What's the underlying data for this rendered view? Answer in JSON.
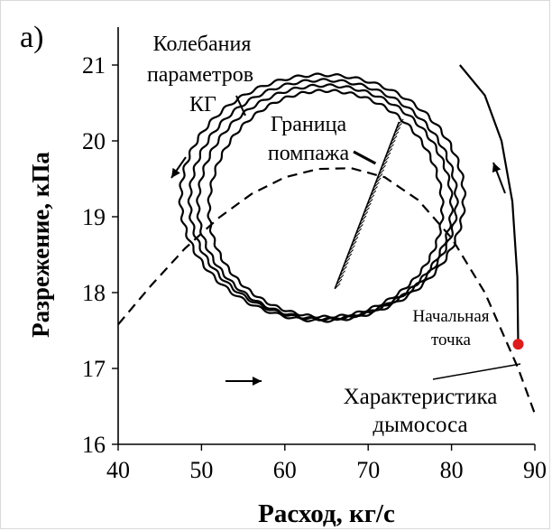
{
  "chart_data": {
    "type": "line",
    "panel_label": "а)",
    "xlabel": "Расход, кг/с",
    "ylabel": "Разрежение, кПа",
    "xlim": [
      40,
      90
    ],
    "ylim": [
      16,
      21.5
    ],
    "x_ticks": [
      40,
      50,
      60,
      70,
      80,
      90
    ],
    "y_ticks": [
      16,
      17,
      18,
      19,
      20,
      21
    ],
    "grid": false,
    "colors": {
      "ink": "#000000",
      "start_point": "#e01b1b"
    },
    "series": [
      {
        "name": "Колебания параметров КГ",
        "style": "solid-wavy",
        "loops": [
          {
            "center": [
              64.5,
              19.25
            ],
            "rx": 17.0,
            "ry_top": 1.62,
            "ry_bottom": 1.62
          },
          {
            "center": [
              64.6,
              19.2
            ],
            "rx": 16.0,
            "ry_top": 1.6,
            "ry_bottom": 1.55
          },
          {
            "center": [
              64.8,
              19.15
            ],
            "rx": 15.2,
            "ry_top": 1.58,
            "ry_bottom": 1.5
          },
          {
            "center": [
              64.9,
              19.1
            ],
            "rx": 14.0,
            "ry_top": 1.56,
            "ry_bottom": 1.42
          }
        ],
        "tail": [
          [
            88.0,
            17.3
          ],
          [
            87.9,
            18.2
          ],
          [
            87.3,
            19.2
          ],
          [
            86.0,
            20.0
          ],
          [
            84.0,
            20.6
          ],
          [
            81.0,
            21.0
          ]
        ]
      },
      {
        "name": "Характеристика дымососа",
        "style": "dashed",
        "x": [
          40,
          44,
          48,
          52,
          56,
          60,
          64,
          68,
          72,
          76,
          80,
          84,
          88,
          90
        ],
        "y": [
          17.58,
          18.1,
          18.58,
          18.98,
          19.3,
          19.52,
          19.63,
          19.64,
          19.52,
          19.22,
          18.72,
          18.0,
          17.0,
          16.4
        ]
      }
    ],
    "surge_boundary": {
      "name": "Граница помпажа",
      "from": [
        66.0,
        18.05
      ],
      "to": [
        73.7,
        20.25
      ]
    },
    "start_point": {
      "label": "Начальная точка",
      "x": 88.0,
      "y": 17.32
    },
    "direction_arrows": [
      "down-left",
      "right",
      "up"
    ],
    "annotations": {
      "oscillations_lines": [
        "Колебания",
        "параметров",
        "КГ"
      ],
      "surge_lines": [
        "Граница",
        "помпажа"
      ],
      "start_lines": [
        "Начальная",
        "точка"
      ],
      "fan_lines": [
        "Характеристика",
        "дымососа"
      ]
    }
  }
}
